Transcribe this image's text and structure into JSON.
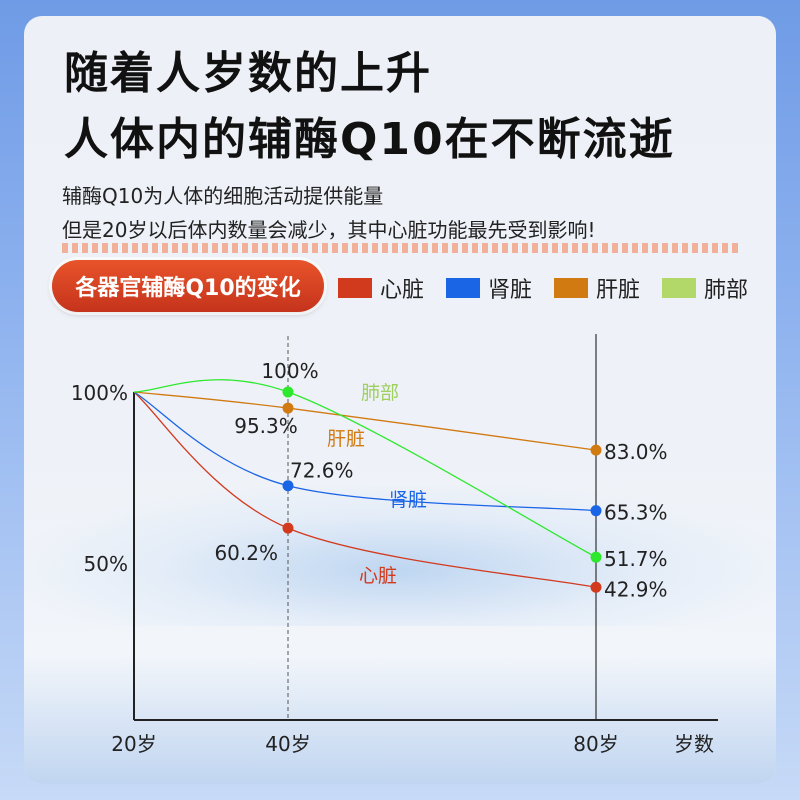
{
  "headline": {
    "line1": "随着人岁数的上升",
    "line2": "人体内的辅酶Q10在不断流逝"
  },
  "subtitle": {
    "line1": "辅酶Q10为人体的细胞活动提供能量",
    "line2": "但是20岁以后体内数量会减少，其中心脏功能最先受到影响!"
  },
  "badge": "各器官辅酶Q10的变化",
  "legend": [
    {
      "label": "心脏",
      "color": "#d23a1e"
    },
    {
      "label": "肾脏",
      "color": "#1a64e6"
    },
    {
      "label": "肝脏",
      "color": "#d17a12"
    },
    {
      "label": "肺部",
      "color": "#b2d86a"
    }
  ],
  "chart_data": {
    "type": "line",
    "xlabel": "岁数",
    "x_ticks": [
      {
        "x": 20,
        "label": "20岁"
      },
      {
        "x": 40,
        "label": "40岁"
      },
      {
        "x": 80,
        "label": "80岁"
      }
    ],
    "y_ticks": [
      {
        "y": 100,
        "label": "100%"
      },
      {
        "y": 50,
        "label": "50%"
      }
    ],
    "xlim": [
      20,
      80
    ],
    "ylim": [
      0,
      100
    ],
    "series": [
      {
        "name": "心脏",
        "color": "#d23a1e",
        "points": [
          {
            "x": 20,
            "y": 100
          },
          {
            "x": 40,
            "y": 60.2,
            "label": "60.2%"
          },
          {
            "x": 80,
            "y": 42.9,
            "label": "42.9%"
          }
        ]
      },
      {
        "name": "肾脏",
        "color": "#1a64e6",
        "points": [
          {
            "x": 20,
            "y": 100
          },
          {
            "x": 40,
            "y": 72.6,
            "label": "72.6%"
          },
          {
            "x": 80,
            "y": 65.3,
            "label": "65.3%"
          }
        ]
      },
      {
        "name": "肝脏",
        "color": "#d17a12",
        "points": [
          {
            "x": 20,
            "y": 100
          },
          {
            "x": 40,
            "y": 95.3,
            "label": "95.3%"
          },
          {
            "x": 80,
            "y": 83.0,
            "label": "83.0%"
          }
        ]
      },
      {
        "name": "肺部",
        "color": "#2ee82e",
        "points": [
          {
            "x": 20,
            "y": 100
          },
          {
            "x": 40,
            "y": 100,
            "label": "100%"
          },
          {
            "x": 80,
            "y": 51.7,
            "label": "51.7%"
          }
        ]
      }
    ]
  }
}
